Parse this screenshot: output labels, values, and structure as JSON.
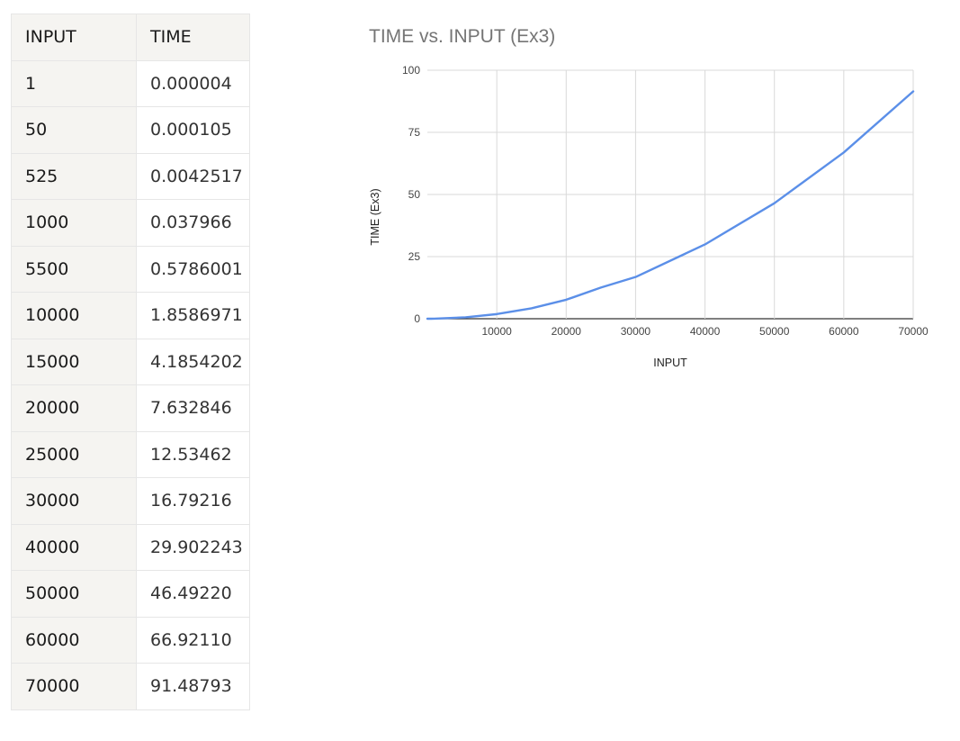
{
  "table": {
    "headers": [
      "INPUT",
      "TIME"
    ],
    "rows": [
      [
        "1",
        "0.000004"
      ],
      [
        "50",
        "0.000105"
      ],
      [
        "525",
        "0.0042517"
      ],
      [
        "1000",
        "0.037966"
      ],
      [
        "5500",
        "0.5786001"
      ],
      [
        "10000",
        "1.8586971"
      ],
      [
        "15000",
        "4.1854202"
      ],
      [
        "20000",
        "7.632846"
      ],
      [
        "25000",
        "12.53462"
      ],
      [
        "30000",
        "16.79216"
      ],
      [
        "40000",
        "29.902243"
      ],
      [
        "50000",
        "46.49220"
      ],
      [
        "60000",
        "66.92110"
      ],
      [
        "70000",
        "91.48793"
      ]
    ]
  },
  "chart_data": {
    "type": "line",
    "title": "TIME vs. INPUT (Ex3)",
    "xlabel": "INPUT",
    "ylabel": "TIME (Ex3)",
    "xlim": [
      0,
      70000
    ],
    "ylim": [
      0,
      100
    ],
    "x_ticks": [
      10000,
      20000,
      30000,
      40000,
      50000,
      60000,
      70000
    ],
    "y_ticks": [
      0,
      25,
      50,
      75,
      100
    ],
    "grid": true,
    "series": [
      {
        "name": "",
        "color": "#5b8fe8",
        "x": [
          1,
          50,
          525,
          1000,
          5500,
          10000,
          15000,
          20000,
          25000,
          30000,
          40000,
          50000,
          60000,
          70000
        ],
        "y": [
          4e-06,
          0.000105,
          0.0042517,
          0.037966,
          0.5786001,
          1.8586971,
          4.1854202,
          7.632846,
          12.53462,
          16.79216,
          29.902243,
          46.4922,
          66.9211,
          91.48793
        ]
      }
    ]
  }
}
